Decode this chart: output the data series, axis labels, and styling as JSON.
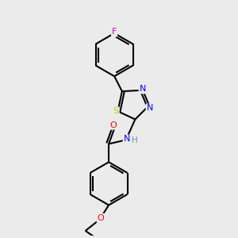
{
  "background_color": "#ebebeb",
  "bond_color": "#000000",
  "atom_colors": {
    "F": "#cc00cc",
    "N": "#0000ff",
    "O": "#ff0000",
    "S": "#cccc00",
    "H": "#5599aa",
    "C": "#000000"
  },
  "figsize": [
    3.0,
    3.0
  ],
  "dpi": 100
}
